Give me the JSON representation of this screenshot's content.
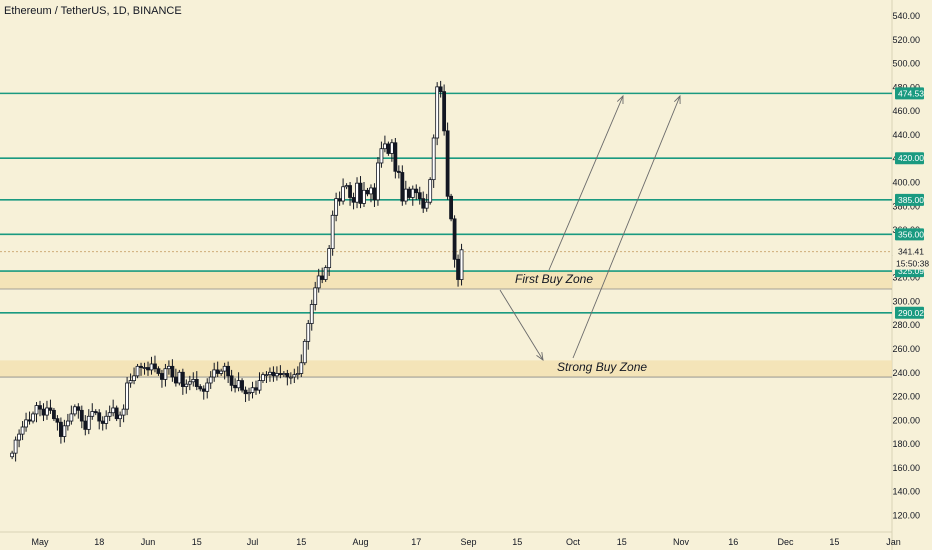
{
  "header": {
    "title": "Ethereum / TetherUS, 1D, BINANCE"
  },
  "colors": {
    "background": "#f7f1d8",
    "level_line": "#1a9a80",
    "zone_fill": "#f3dfae",
    "candle": "#131722",
    "text": "#131722",
    "annotation": "#6b6b6b"
  },
  "chart_data": {
    "type": "candlestick",
    "title": "Ethereum / TetherUS, 1D, BINANCE",
    "y_range": [
      100,
      560
    ],
    "y_ticks": [
      "540.00",
      "520.00",
      "500.00",
      "480.00",
      "460.00",
      "440.00",
      "420.00",
      "400.00",
      "380.00",
      "360.00",
      "340.00",
      "320.00",
      "300.00",
      "280.00",
      "260.00",
      "240.00",
      "220.00",
      "200.00",
      "180.00",
      "160.00",
      "140.00",
      "120.00"
    ],
    "x_ticks": [
      "May",
      "18",
      "Jun",
      "15",
      "Jul",
      "15",
      "Aug",
      "17",
      "Sep",
      "15",
      "Oct",
      "15",
      "Nov",
      "16",
      "Dec",
      "15",
      "Jan"
    ],
    "price_labels": [
      {
        "value": 474.53,
        "text": "474.53"
      },
      {
        "value": 420.0,
        "text": "420.00"
      },
      {
        "value": 385.0,
        "text": "385.00"
      },
      {
        "value": 356.0,
        "text": "356.00"
      },
      {
        "value": 325.09,
        "text": "325.09"
      },
      {
        "value": 290.02,
        "text": "290.02"
      }
    ],
    "current_price": {
      "value": 341.41,
      "text": "341.41",
      "countdown": "15:50:38"
    },
    "zones": [
      {
        "label": "First Buy Zone",
        "low": 310,
        "high": 325.09
      },
      {
        "label": "Strong Buy Zone",
        "low": 236,
        "high": 250
      }
    ],
    "close_series": {
      "start_date": "2020-04-23",
      "closes": [
        172,
        183,
        188,
        194,
        200,
        199,
        205,
        212,
        209,
        204,
        210,
        208,
        201,
        198,
        186,
        195,
        199,
        205,
        211,
        208,
        199,
        192,
        203,
        207,
        206,
        199,
        197,
        203,
        206,
        210,
        201,
        204,
        209,
        231,
        233,
        237,
        245,
        244,
        244,
        242,
        247,
        243,
        239,
        234,
        243,
        245,
        236,
        231,
        240,
        228,
        230,
        232,
        234,
        228,
        226,
        224,
        231,
        236,
        242,
        239,
        241,
        245,
        237,
        229,
        227,
        233,
        225,
        222,
        223,
        227,
        225,
        233,
        238,
        238,
        240,
        237,
        239,
        238,
        239,
        236,
        236,
        238,
        239,
        248,
        266,
        281,
        297,
        311,
        321,
        318,
        328,
        344,
        372,
        386,
        384,
        396,
        397,
        387,
        383,
        399,
        382,
        393,
        390,
        395,
        385,
        416,
        428,
        432,
        424,
        433,
        409,
        408,
        384,
        394,
        387,
        394,
        391,
        386,
        378,
        383,
        402,
        437,
        480,
        476,
        443,
        388,
        369,
        335,
        318,
        343
      ]
    }
  }
}
